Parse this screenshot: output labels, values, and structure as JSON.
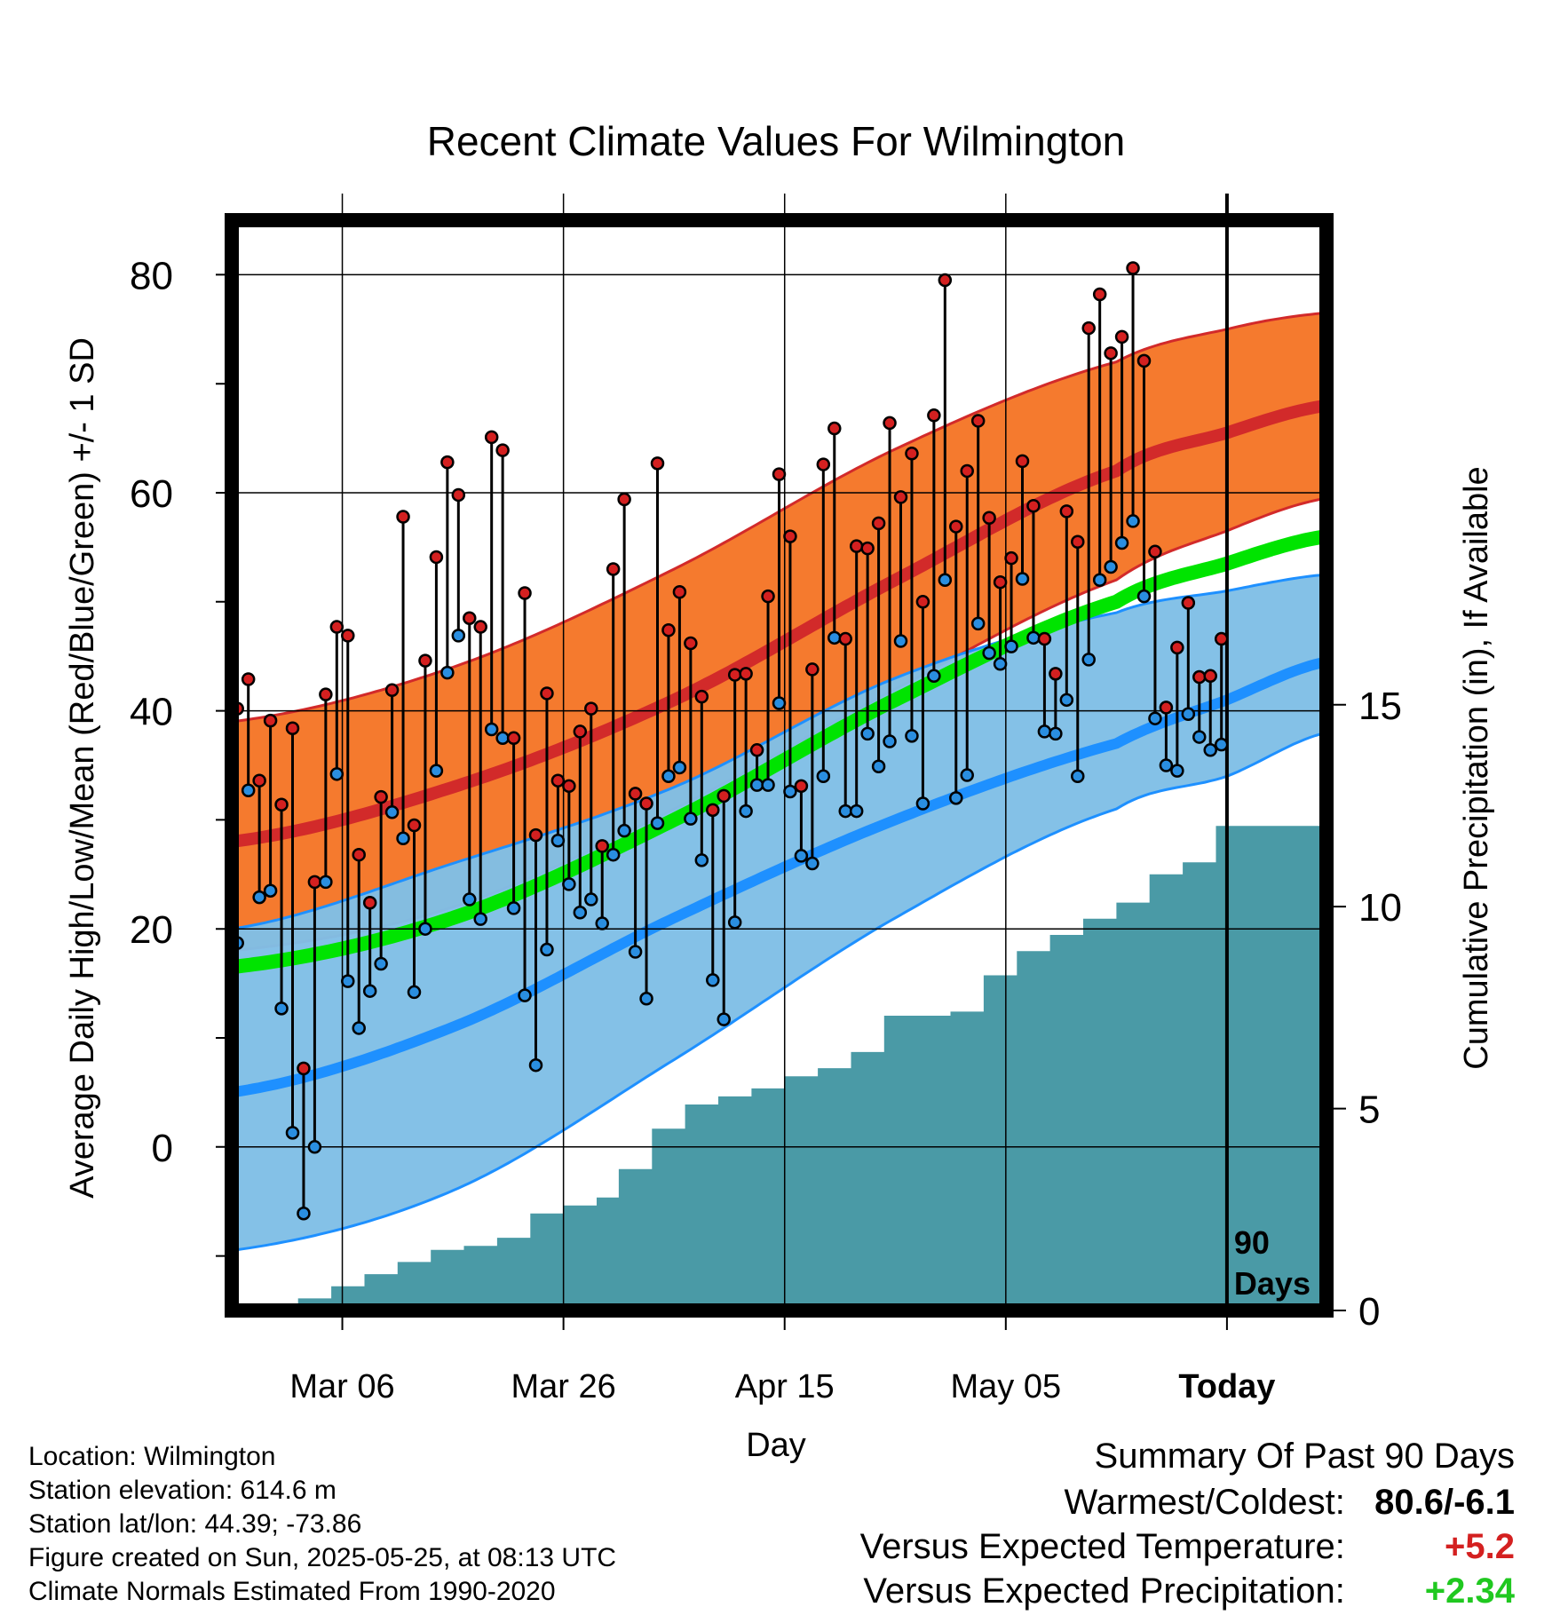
{
  "chart_data": {
    "type": "line",
    "title": "Recent Climate Values For Wilmington",
    "xlabel": "Day",
    "ylabel": "Average Daily High/Low/Mean (Red/Blue/Green) +/- 1 SD",
    "y2label": "Cumulative Precipitation (in), If Available",
    "ylim": [
      -15,
      85
    ],
    "y_ticks": [
      0,
      20,
      40,
      60,
      80
    ],
    "y2lim": [
      0,
      27
    ],
    "y2_ticks": [
      0,
      5,
      10,
      15
    ],
    "x_tick_labels": [
      "Mar 06",
      "Mar 26",
      "Apr 15",
      "May 05",
      "Today"
    ],
    "x_tick_days": [
      -80,
      -60,
      -40,
      -20,
      0
    ],
    "xlim": [
      -90,
      9
    ],
    "grid": true,
    "today_marker": {
      "line1": "90",
      "line2": "Days"
    },
    "normals": {
      "x": [
        -90,
        -70,
        -50,
        -30,
        -10,
        0,
        9
      ],
      "high_mean": [
        28,
        33,
        41,
        52,
        62,
        65.5,
        68
      ],
      "high_sd_upper": [
        39,
        44,
        53,
        64,
        72,
        75,
        76.5
      ],
      "high_sd_lower": [
        18,
        22,
        31,
        42,
        52,
        56.5,
        59.5
      ],
      "mean": [
        16.5,
        21,
        30,
        41,
        50,
        53.5,
        56
      ],
      "low_mean": [
        5,
        11,
        21,
        30,
        37,
        41,
        44.5
      ],
      "low_sd_upper": [
        20,
        26,
        33,
        43,
        49,
        51,
        52.5
      ],
      "low_sd_lower": [
        -9.5,
        -4,
        8,
        21,
        31,
        34,
        38
      ]
    },
    "series": [
      {
        "name": "High",
        "values": [
          40.2,
          42.9,
          33.6,
          39.1,
          31.4,
          38.4,
          7.2,
          24.3,
          41.5,
          47.7,
          46.9,
          26.8,
          22.4,
          32.1,
          41.9,
          57.8,
          29.5,
          44.6,
          54.1,
          62.8,
          59.8,
          48.5,
          47.7,
          65.1,
          63.9,
          37.5,
          50.8,
          28.6,
          41.6,
          33.6,
          33.1,
          38.1,
          40.2,
          27.6,
          53.0,
          59.4,
          32.4,
          31.5,
          62.7,
          47.4,
          50.9,
          46.2,
          41.3,
          30.9,
          32.2,
          43.3,
          43.4,
          36.4,
          50.5,
          61.7,
          56.0,
          33.1,
          43.8,
          62.6,
          65.9,
          46.6,
          55.1,
          54.9,
          57.2,
          66.4,
          59.6,
          63.6,
          50.0,
          67.1,
          79.5,
          56.9,
          62.0,
          66.6,
          57.7,
          51.8,
          54.0,
          62.9,
          58.8,
          46.6,
          43.4,
          58.3,
          55.5,
          75.1,
          78.2,
          72.8,
          74.3,
          80.6,
          72.1,
          54.6,
          40.3,
          45.8,
          49.9,
          43.1,
          43.2,
          46.6
        ]
      },
      {
        "name": "Low",
        "values": [
          18.7,
          32.7,
          22.9,
          23.5,
          12.7,
          1.3,
          -6.1,
          0.0,
          24.3,
          34.2,
          15.2,
          10.9,
          14.3,
          16.8,
          30.7,
          28.3,
          14.2,
          20.0,
          34.5,
          43.5,
          46.9,
          22.7,
          20.9,
          38.3,
          37.5,
          21.9,
          13.9,
          7.5,
          18.1,
          28.1,
          24.1,
          21.5,
          22.7,
          20.5,
          26.8,
          29.0,
          17.9,
          13.6,
          29.7,
          34.0,
          34.8,
          30.1,
          26.3,
          15.3,
          11.7,
          20.6,
          30.8,
          33.2,
          33.2,
          40.7,
          32.6,
          26.7,
          26.0,
          34.0,
          46.7,
          30.8,
          30.8,
          37.9,
          34.9,
          37.2,
          46.4,
          37.7,
          31.5,
          43.2,
          52.0,
          32.0,
          34.1,
          48.0,
          45.3,
          44.3,
          45.9,
          52.1,
          46.7,
          38.1,
          37.9,
          41.0,
          34.0,
          44.7,
          52.0,
          53.2,
          55.4,
          57.4,
          50.5,
          39.3,
          35.0,
          34.5,
          39.7,
          37.6,
          36.4,
          36.9
        ]
      },
      {
        "name": "Cumulative Precipitation",
        "x": [
          -87,
          -84,
          -81,
          -78,
          -75,
          -72,
          -69,
          -66,
          -63,
          -60,
          -57,
          -55,
          -52,
          -49,
          -46,
          -43,
          -40,
          -37,
          -34,
          -31,
          -28,
          -25,
          -22,
          -19,
          -16,
          -13,
          -10,
          -7,
          -4,
          -1,
          9
        ],
        "values": [
          0.0,
          0.3,
          0.6,
          0.9,
          1.2,
          1.5,
          1.6,
          1.8,
          2.4,
          2.6,
          2.8,
          3.5,
          4.5,
          5.1,
          5.3,
          5.5,
          5.8,
          6.0,
          6.4,
          7.3,
          7.3,
          7.4,
          8.3,
          8.9,
          9.3,
          9.7,
          10.1,
          10.8,
          11.1,
          12.0,
          12.2
        ]
      }
    ]
  },
  "footer": {
    "location": "Location: Wilmington",
    "elevation": "Station elevation: 614.6 m",
    "latlon": "Station lat/lon: 44.39; -73.86",
    "created": "Figure created on Sun, 2025-05-25, at 08:13 UTC",
    "normals": "Climate Normals Estimated From 1990-2020"
  },
  "summary": {
    "title": "Summary Of Past 90 Days",
    "warmest_label": "Warmest/Coldest:",
    "warmest_value": "80.6/-6.1",
    "temp_label": "Versus Expected Temperature:",
    "temp_value": "+5.2",
    "precip_label": "Versus Expected Precipitation:",
    "precip_value": "+2.34",
    "colors": {
      "warm": "#d42020",
      "precip": "#20c820"
    }
  },
  "colors": {
    "high_band": "#f57a2e",
    "high_line": "#d22a2a",
    "mean_line": "#00e400",
    "low_band": "#80bfe6",
    "low_line": "#1e90ff",
    "precip_fill": "#4a9aa6",
    "high_dot": "#d42020",
    "low_dot": "#2a8ee0"
  }
}
